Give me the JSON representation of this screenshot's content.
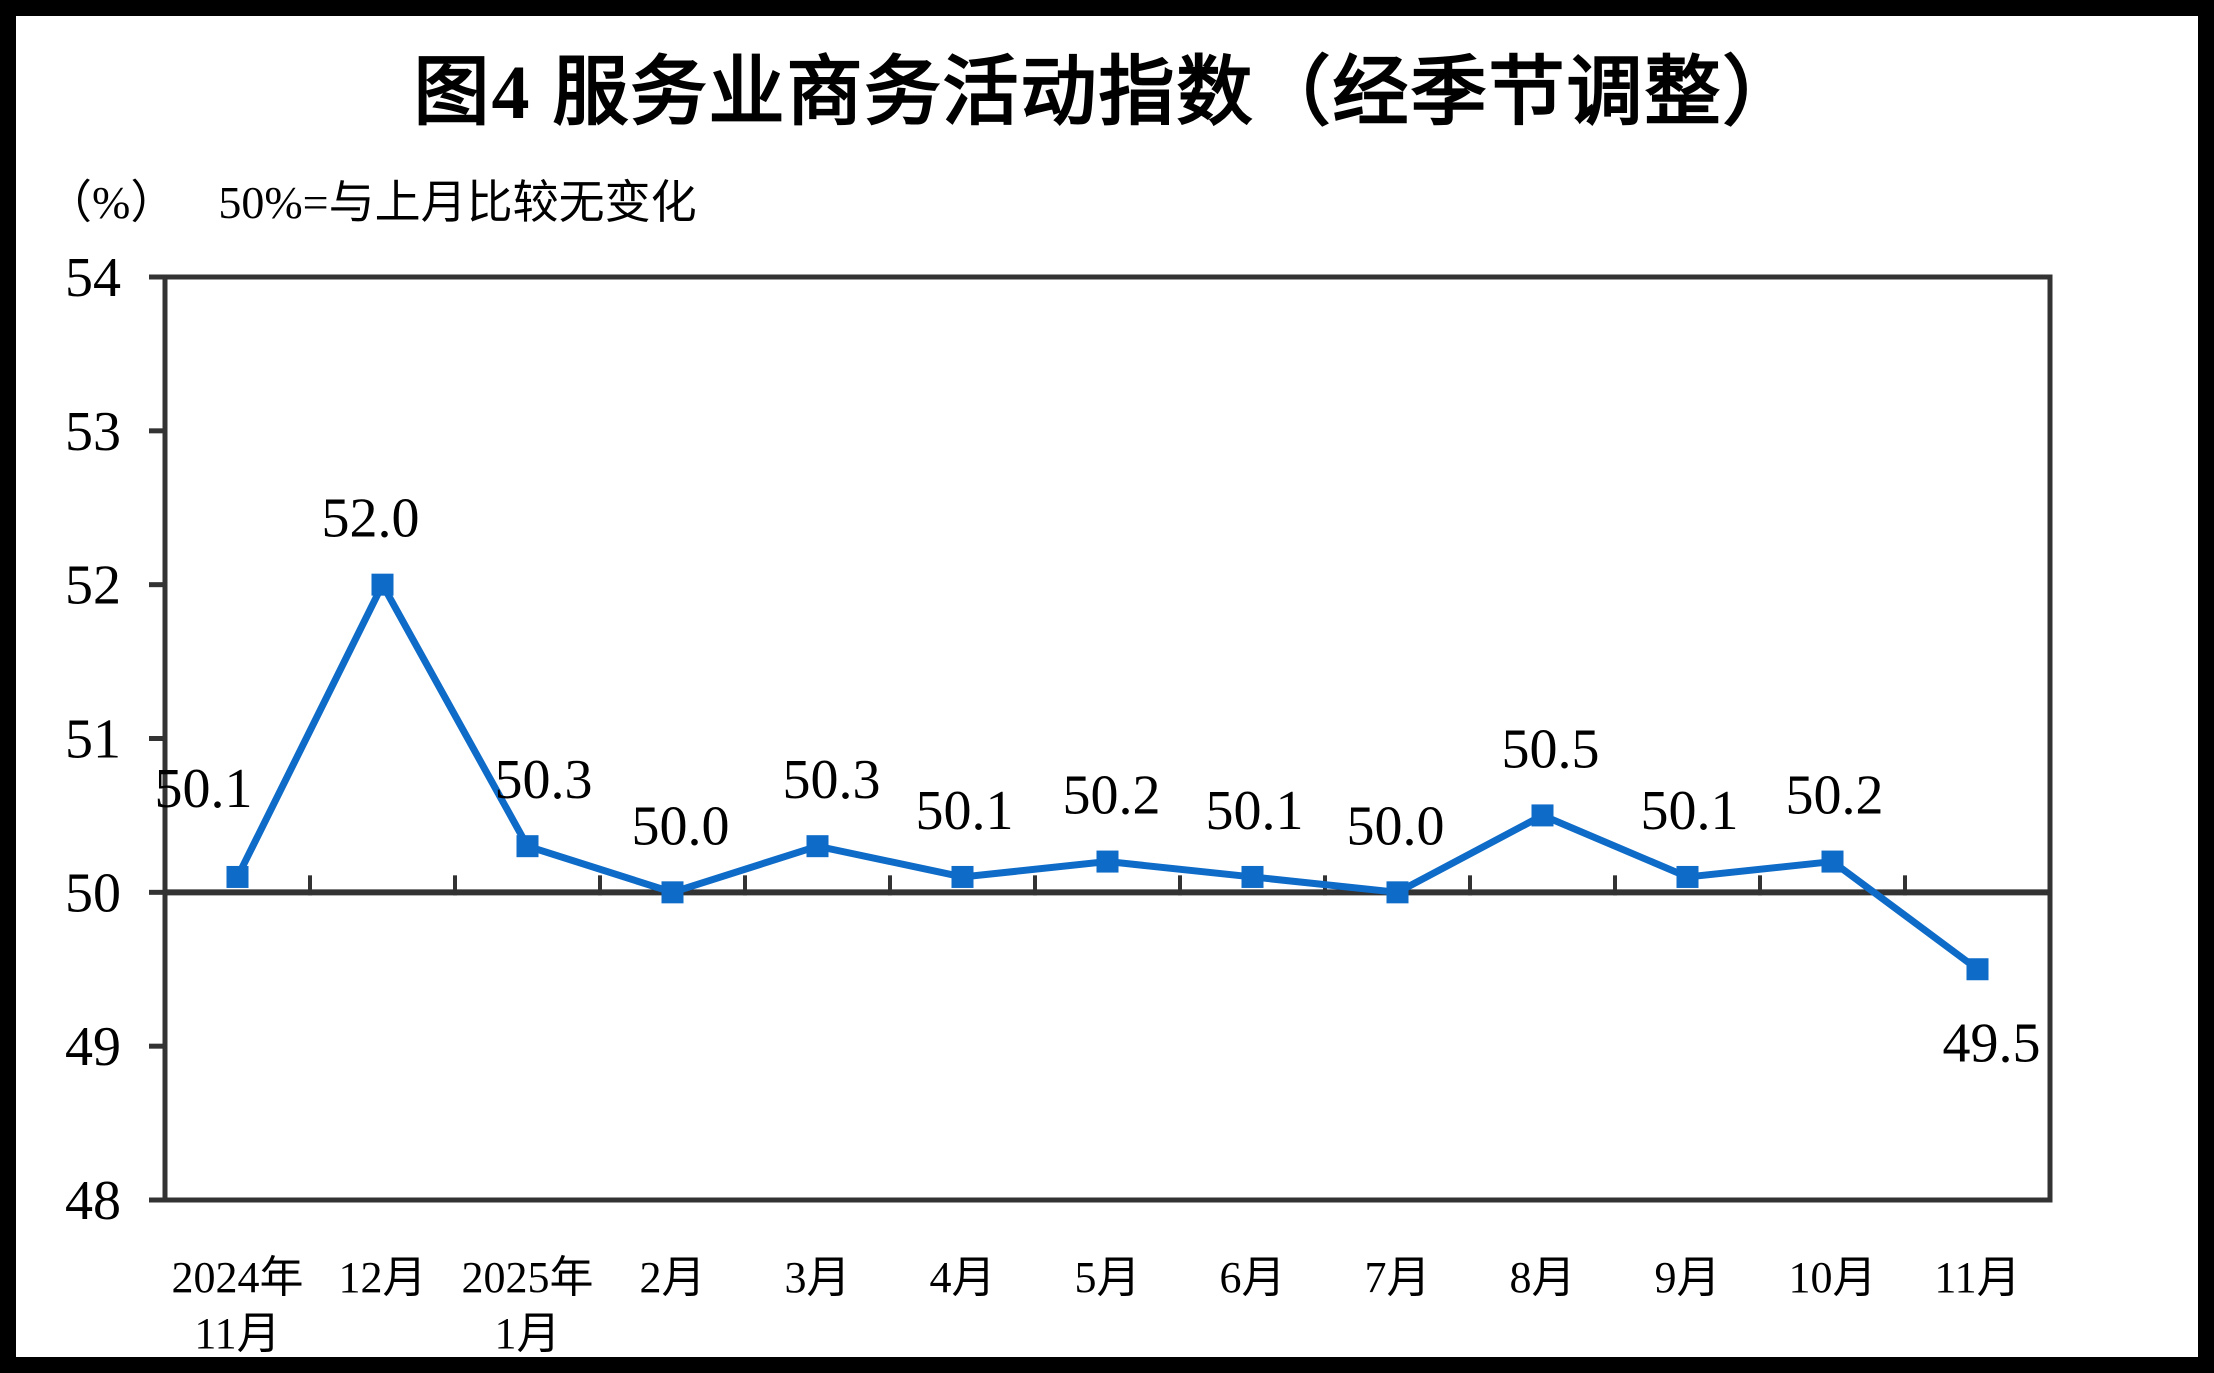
{
  "page": {
    "title": "图4 服务业商务活动指数（经季节调整）",
    "unit_label": "（%）",
    "subtitle": "50%=与上月比较无变化"
  },
  "chart_data": {
    "type": "line",
    "title": "图4 服务业商务活动指数（经季节调整）",
    "series_name": "服务业商务活动指数",
    "categories": [
      "2024年\n11月",
      "12月",
      "2025年\n1月",
      "2月",
      "3月",
      "4月",
      "5月",
      "6月",
      "7月",
      "8月",
      "9月",
      "10月",
      "11月"
    ],
    "values": [
      50.1,
      52.0,
      50.3,
      50.0,
      50.3,
      50.1,
      50.2,
      50.1,
      50.0,
      50.5,
      50.1,
      50.2,
      49.5
    ],
    "data_labels": [
      "50.1",
      "52.0",
      "50.3",
      "50.0",
      "50.3",
      "50.1",
      "50.2",
      "50.1",
      "50.0",
      "50.5",
      "50.1",
      "50.2",
      "49.5"
    ],
    "ylabel": "（%）",
    "baseline_note": "50%=与上月比较无变化",
    "ylim": [
      48,
      54
    ],
    "yticks": [
      48,
      49,
      50,
      51,
      52,
      53,
      54
    ],
    "baseline": 50,
    "grid": false,
    "legend": "none",
    "line_color": "#0E6BC8",
    "marker": "square",
    "axis_color": "#333333",
    "text_color": "#000000",
    "background_color": "#FFFFFF",
    "frame_color": "#000000"
  }
}
